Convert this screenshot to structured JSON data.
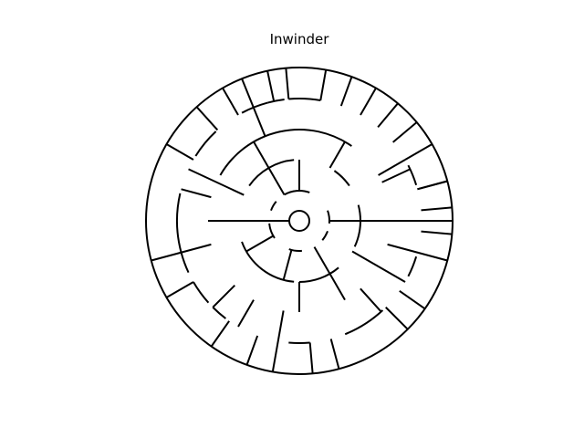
{
  "title": "Inwinder",
  "colors": {
    "background": "#ffffff",
    "wall": "#000000"
  },
  "maze": {
    "style": "circular",
    "center_marker": "start-circle"
  }
}
